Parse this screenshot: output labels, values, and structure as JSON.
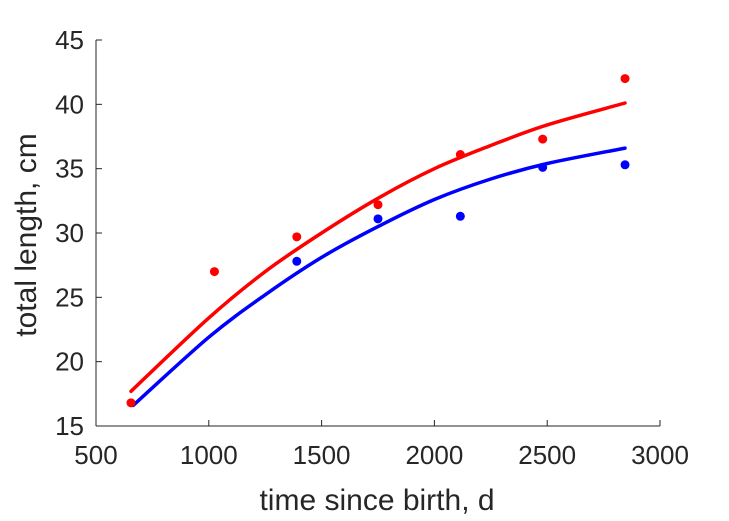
{
  "chart_data": {
    "type": "scatter",
    "xlabel": "time since birth, d",
    "ylabel": "total length, cm",
    "xlim": [
      500,
      3000
    ],
    "ylim": [
      15,
      45
    ],
    "xticks": [
      500,
      1000,
      1500,
      2000,
      2500,
      3000
    ],
    "yticks": [
      15,
      20,
      25,
      30,
      35,
      40,
      45
    ],
    "grid": false,
    "legend": "none",
    "series": [
      {
        "color": "#ff0000",
        "points": [
          {
            "x": 655,
            "y": 16.8
          },
          {
            "x": 1025,
            "y": 27.0
          },
          {
            "x": 1390,
            "y": 29.7
          },
          {
            "x": 1750,
            "y": 32.2
          },
          {
            "x": 2115,
            "y": 36.1
          },
          {
            "x": 2480,
            "y": 37.3
          },
          {
            "x": 2845,
            "y": 42.0
          }
        ],
        "fit": [
          {
            "x": 655,
            "y": 17.7
          },
          {
            "x": 1000,
            "y": 23.4
          },
          {
            "x": 1250,
            "y": 27.0
          },
          {
            "x": 1500,
            "y": 30.0
          },
          {
            "x": 1750,
            "y": 32.7
          },
          {
            "x": 2000,
            "y": 35.0
          },
          {
            "x": 2250,
            "y": 36.8
          },
          {
            "x": 2500,
            "y": 38.4
          },
          {
            "x": 2845,
            "y": 40.1
          }
        ]
      },
      {
        "color": "#0000ff",
        "points": [
          {
            "x": 1390,
            "y": 27.8
          },
          {
            "x": 1750,
            "y": 31.1
          },
          {
            "x": 2115,
            "y": 31.3
          },
          {
            "x": 2480,
            "y": 35.1
          },
          {
            "x": 2845,
            "y": 35.3
          }
        ],
        "fit": [
          {
            "x": 665,
            "y": 16.6
          },
          {
            "x": 1000,
            "y": 21.9
          },
          {
            "x": 1250,
            "y": 25.2
          },
          {
            "x": 1500,
            "y": 28.1
          },
          {
            "x": 1750,
            "y": 30.5
          },
          {
            "x": 2000,
            "y": 32.6
          },
          {
            "x": 2250,
            "y": 34.2
          },
          {
            "x": 2500,
            "y": 35.4
          },
          {
            "x": 2845,
            "y": 36.6
          }
        ]
      }
    ]
  }
}
